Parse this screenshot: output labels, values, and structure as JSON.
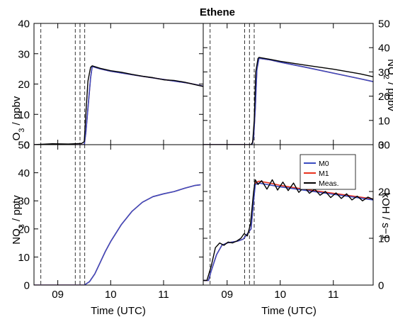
{
  "chart_data": [
    {
      "type": "line",
      "title": "Ethene",
      "ylabel": "O₃ / ppbv",
      "xlabel": "",
      "xlim": [
        8.55,
        11.75
      ],
      "ylim": [
        0,
        40
      ],
      "yticks": [
        0,
        10,
        20,
        30,
        40
      ],
      "xticks": [
        9,
        10,
        11
      ],
      "grid": false,
      "vlines": [
        8.68,
        9.33,
        9.42,
        9.51
      ],
      "series": [
        {
          "name": "M0",
          "color": "#3b4cc0",
          "x": [
            8.55,
            9.5,
            9.53,
            9.57,
            9.62,
            9.65,
            9.8,
            10.0,
            10.5,
            11.0,
            11.5,
            11.75
          ],
          "y": [
            0,
            0,
            4,
            12,
            22,
            25.8,
            25,
            24.2,
            22.8,
            21.5,
            20.2,
            19.3
          ]
        },
        {
          "name": "M1",
          "color": "#e8321e",
          "x": [
            8.55,
            9.5,
            9.53,
            9.57,
            9.62,
            9.65,
            9.8,
            10.0,
            10.5,
            11.0,
            11.5,
            11.75
          ],
          "y": [
            0,
            0,
            4,
            12,
            22,
            25.8,
            25,
            24.2,
            22.8,
            21.5,
            20.2,
            19.3
          ]
        },
        {
          "name": "Meas.",
          "color": "#000000",
          "x": [
            8.55,
            8.9,
            9.2,
            9.45,
            9.5,
            9.53,
            9.57,
            9.62,
            9.65,
            9.8,
            10.0,
            10.2,
            10.4,
            10.6,
            10.8,
            11.0,
            11.2,
            11.4,
            11.6,
            11.75
          ],
          "y": [
            0,
            0.3,
            0.2,
            0.4,
            1,
            10,
            21,
            25.5,
            26,
            25.2,
            24.4,
            23.9,
            23.2,
            22.6,
            22.1,
            21.4,
            21.2,
            20.6,
            19.8,
            19.2
          ]
        }
      ]
    },
    {
      "type": "line",
      "title": "",
      "ylabel": "NO₂ / ppbv",
      "xlabel": "",
      "xlim": [
        8.55,
        11.75
      ],
      "ylim": [
        0,
        50
      ],
      "yticks": [
        0,
        10,
        20,
        30,
        40,
        50
      ],
      "xticks": [
        9,
        10,
        11
      ],
      "grid": false,
      "vlines": [
        8.68,
        9.33,
        9.42,
        9.51
      ],
      "series": [
        {
          "name": "M0",
          "color": "#3b4cc0",
          "x": [
            8.55,
            9.47,
            9.5,
            9.53,
            9.56,
            9.6,
            9.8,
            10.0,
            10.5,
            11.0,
            11.5,
            11.75
          ],
          "y": [
            0,
            0,
            3,
            15,
            31,
            35.6,
            35,
            34,
            31.8,
            29.5,
            27.2,
            26
          ]
        },
        {
          "name": "M1",
          "color": "#e8321e",
          "x": [
            8.55,
            9.47,
            9.5,
            9.53,
            9.56,
            9.6,
            9.8,
            10.0,
            10.5,
            11.0,
            11.5,
            11.75
          ],
          "y": [
            0,
            0,
            3,
            15,
            31,
            35.6,
            35,
            34,
            31.8,
            29.5,
            27.2,
            26
          ]
        },
        {
          "name": "Meas.",
          "color": "#000000",
          "x": [
            8.55,
            9.45,
            9.48,
            9.51,
            9.54,
            9.58,
            9.6,
            9.8,
            10.0,
            10.5,
            11.0,
            11.5,
            11.75
          ],
          "y": [
            0,
            0,
            1,
            10,
            30,
            35.5,
            36,
            35.2,
            34.4,
            32.7,
            31.1,
            29.2,
            28
          ]
        }
      ]
    },
    {
      "type": "line",
      "title": "",
      "ylabel": "NO₃ / pptv",
      "xlabel": "Time (UTC)",
      "xlim": [
        8.55,
        11.75
      ],
      "ylim": [
        0,
        50
      ],
      "yticks": [
        0,
        10,
        20,
        30,
        40,
        50
      ],
      "xticks": [
        9,
        10,
        11
      ],
      "grid": false,
      "vlines": [
        8.68,
        9.33,
        9.42,
        9.51
      ],
      "series": [
        {
          "name": "M0",
          "color": "#3b4cc0",
          "x": [
            8.55,
            9.5,
            9.6,
            9.7,
            9.8,
            9.9,
            10.0,
            10.2,
            10.4,
            10.6,
            10.8,
            11.0,
            11.2,
            11.4,
            11.6,
            11.7
          ],
          "y": [
            0,
            0,
            1.2,
            4,
            8,
            12,
            15.5,
            21.5,
            26.2,
            29.5,
            31.5,
            32.5,
            33.3,
            34.5,
            35.5,
            35.7
          ]
        },
        {
          "name": "M1",
          "color": "#e8321e",
          "x": [
            8.55,
            9.5,
            9.6,
            9.7,
            9.8,
            9.9,
            10.0,
            10.2,
            10.4,
            10.6,
            10.8,
            11.0,
            11.2,
            11.4,
            11.6,
            11.7
          ],
          "y": [
            0,
            0,
            1.2,
            4,
            8,
            12,
            15.5,
            21.5,
            26.2,
            29.5,
            31.5,
            32.5,
            33.3,
            34.5,
            35.5,
            35.7
          ]
        }
      ]
    },
    {
      "type": "line",
      "title": "",
      "ylabel": "kOH / s−1",
      "xlabel": "Time (UTC)",
      "xlim": [
        8.55,
        11.75
      ],
      "ylim": [
        0,
        30
      ],
      "yticks": [
        0,
        10,
        20,
        30
      ],
      "xticks": [
        9,
        10,
        11
      ],
      "grid": false,
      "vlines": [
        8.68,
        9.33,
        9.42,
        9.51
      ],
      "legend": {
        "position": "top-right",
        "entries": [
          "M0",
          "M1",
          "Meas."
        ]
      },
      "series": [
        {
          "name": "M0",
          "color": "#3b4cc0",
          "x": [
            8.55,
            8.65,
            8.7,
            8.8,
            8.9,
            9.0,
            9.1,
            9.2,
            9.3,
            9.35,
            9.45,
            9.5,
            9.53,
            9.6,
            9.8,
            10.0,
            10.5,
            11.0,
            11.5,
            11.75
          ],
          "y": [
            1,
            1,
            3,
            6.5,
            8.5,
            9,
            9.2,
            9.4,
            9.8,
            10.5,
            12,
            18,
            21.5,
            21.8,
            21.4,
            21,
            20.2,
            19.4,
            18.6,
            18.2
          ]
        },
        {
          "name": "M1",
          "color": "#e8321e",
          "x": [
            8.55,
            8.65,
            8.7,
            8.8,
            8.9,
            9.0,
            9.1,
            9.2,
            9.3,
            9.35,
            9.45,
            9.5,
            9.53,
            9.6,
            9.8,
            10.0,
            10.5,
            11.0,
            11.5,
            11.75
          ],
          "y": [
            1,
            1,
            3,
            6.5,
            8.5,
            9,
            9.2,
            9.4,
            9.8,
            10.5,
            12,
            18,
            21.8,
            22.2,
            21.8,
            21.3,
            20.4,
            19.6,
            18.8,
            18.4
          ]
        },
        {
          "name": "Meas.",
          "color": "#000000",
          "x": [
            8.55,
            8.62,
            8.7,
            8.78,
            8.86,
            8.94,
            9.02,
            9.1,
            9.18,
            9.26,
            9.32,
            9.38,
            9.44,
            9.5,
            9.53,
            9.58,
            9.65,
            9.75,
            9.85,
            9.95,
            10.05,
            10.15,
            10.25,
            10.35,
            10.45,
            10.55,
            10.65,
            10.75,
            10.85,
            10.95,
            11.05,
            11.15,
            11.25,
            11.35,
            11.45,
            11.55,
            11.65,
            11.75
          ],
          "y": [
            1,
            1,
            4,
            8,
            9,
            8.5,
            9.2,
            9,
            9.4,
            10,
            11,
            10.5,
            13,
            20,
            22.5,
            21.5,
            22.3,
            20.5,
            22.5,
            20.3,
            22,
            20.2,
            21.8,
            19.8,
            21,
            19.6,
            20.5,
            19.2,
            20,
            18.7,
            19.7,
            18.5,
            19.5,
            18.2,
            19,
            18,
            18.8,
            18.3
          ]
        }
      ]
    }
  ]
}
